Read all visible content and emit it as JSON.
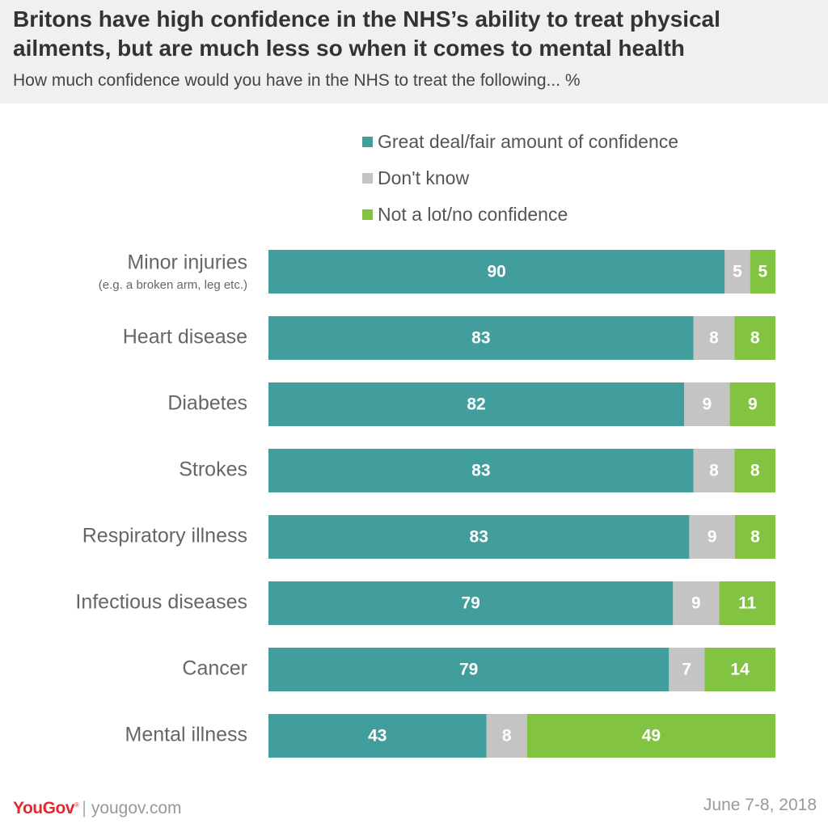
{
  "header": {
    "title": "Britons have high confidence in the NHS’s ability to treat physical ailments, but are much less so when it comes to mental health",
    "subtitle": "How much confidence would you have in the NHS to treat the following... %"
  },
  "footer": {
    "brand": "YouGov",
    "brand_mark": "®",
    "separator": "|",
    "site": "yougov.com",
    "date": "June 7-8, 2018"
  },
  "colors": {
    "confidence": "#429e9d",
    "dont_know": "#c4c4c4",
    "no_confidence": "#82c341"
  },
  "chart_data": {
    "type": "bar",
    "orientation": "horizontal",
    "stacked": true,
    "title": "Britons have high confidence in the NHS’s ability to treat physical ailments, but are much less so when it comes to mental health",
    "subtitle": "How much confidence would you have in the NHS to treat the following... %",
    "xlim": [
      0,
      100
    ],
    "legend_position": "top-right",
    "categories": [
      {
        "label": "Minor injuries",
        "sublabel": "(e.g. a broken arm, leg etc.)"
      },
      {
        "label": "Heart disease",
        "sublabel": ""
      },
      {
        "label": "Diabetes",
        "sublabel": ""
      },
      {
        "label": "Strokes",
        "sublabel": ""
      },
      {
        "label": "Respiratory illness",
        "sublabel": ""
      },
      {
        "label": "Infectious diseases",
        "sublabel": ""
      },
      {
        "label": "Cancer",
        "sublabel": ""
      },
      {
        "label": "Mental illness",
        "sublabel": ""
      }
    ],
    "series": [
      {
        "name": "Great deal/fair amount of confidence",
        "key": "confidence",
        "values": [
          90,
          83,
          82,
          83,
          83,
          79,
          79,
          43
        ]
      },
      {
        "name": "Don't know",
        "key": "dont_know",
        "values": [
          5,
          8,
          9,
          8,
          9,
          9,
          7,
          8
        ]
      },
      {
        "name": "Not a lot/no confidence",
        "key": "no_confidence",
        "values": [
          5,
          8,
          9,
          8,
          8,
          11,
          14,
          49
        ]
      }
    ]
  }
}
